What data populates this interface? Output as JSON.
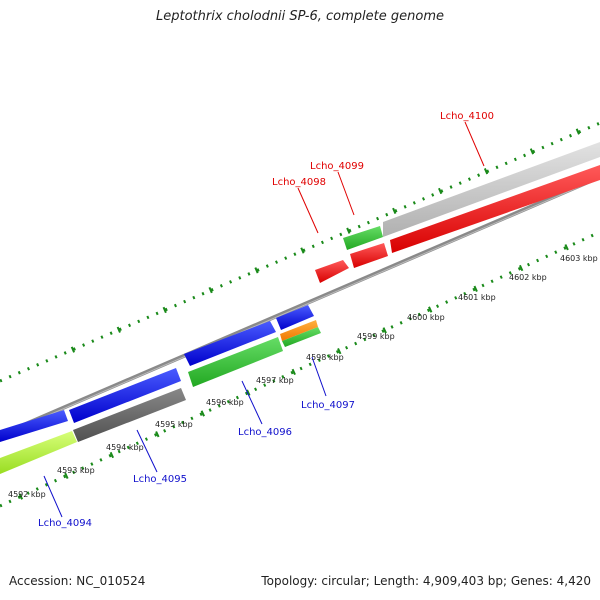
{
  "title": "Leptothrix cholodnii SP-6, complete genome",
  "footer": {
    "accession": "Accession: NC_010524",
    "summary": "Topology: circular; Length: 4,909,403 bp; Genes: 4,420"
  },
  "colors": {
    "backbone": "#8a8a8a",
    "ticks": "#1a8a1a",
    "forward_label": "#e00000",
    "reverse_label": "#1010cc"
  },
  "ticks": [
    "4592 kbp",
    "4593 kbp",
    "4594 kbp",
    "4595 kbp",
    "4596 kbp",
    "4597 kbp",
    "4598 kbp",
    "4599 kbp",
    "4600 kbp",
    "4601 kbp",
    "4602 kbp",
    "4603 kbp"
  ],
  "gene_labels": [
    {
      "text": "Lcho_4094",
      "strand": "reverse"
    },
    {
      "text": "Lcho_4095",
      "strand": "reverse"
    },
    {
      "text": "Lcho_4096",
      "strand": "reverse"
    },
    {
      "text": "Lcho_4097",
      "strand": "reverse"
    },
    {
      "text": "Lcho_4098",
      "strand": "forward"
    },
    {
      "text": "Lcho_4099",
      "strand": "forward"
    },
    {
      "text": "Lcho_4100",
      "strand": "forward"
    }
  ]
}
